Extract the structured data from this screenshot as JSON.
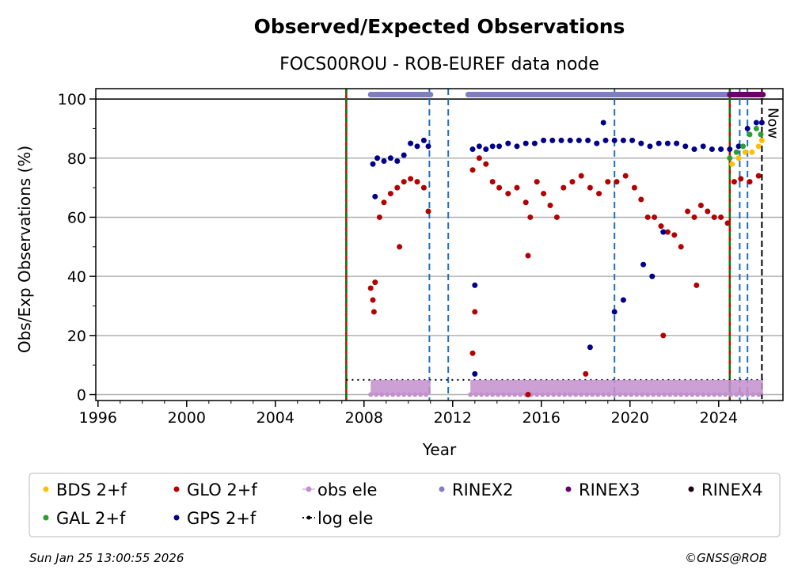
{
  "chart_data": {
    "type": "scatter",
    "title": "Observed/Expected Observations",
    "subtitle": "FOCS00ROU - ROB-EUREF data node",
    "xlabel": "Year",
    "ylabel": "Obs/Exp Observations (%)",
    "xlim": [
      1995.9,
      2026.9
    ],
    "ylim": [
      -2,
      103.5
    ],
    "x_ticks": [
      1996,
      2000,
      2004,
      2008,
      2012,
      2016,
      2020,
      2024
    ],
    "y_ticks": [
      0,
      20,
      40,
      60,
      80,
      100
    ],
    "grid": "horizontal",
    "legend_position": "bottom",
    "now_label": "Now",
    "now_year": 2025.95,
    "series": [
      {
        "name": "GLO 2+f",
        "color": "#b30000",
        "points": [
          [
            2008.3,
            36
          ],
          [
            2008.4,
            32
          ],
          [
            2008.5,
            38
          ],
          [
            2008.45,
            28
          ],
          [
            2008.7,
            60
          ],
          [
            2008.9,
            65
          ],
          [
            2009.2,
            68
          ],
          [
            2009.5,
            70
          ],
          [
            2009.8,
            72
          ],
          [
            2010.1,
            73
          ],
          [
            2010.4,
            72
          ],
          [
            2010.7,
            70
          ],
          [
            2010.9,
            62
          ],
          [
            2012.9,
            76
          ],
          [
            2013.2,
            80
          ],
          [
            2013.5,
            78
          ],
          [
            2013.8,
            72
          ],
          [
            2014.1,
            70
          ],
          [
            2014.5,
            68
          ],
          [
            2014.9,
            70
          ],
          [
            2015.3,
            65
          ],
          [
            2015.5,
            60
          ],
          [
            2015.8,
            72
          ],
          [
            2016.1,
            68
          ],
          [
            2016.4,
            64
          ],
          [
            2016.7,
            60
          ],
          [
            2017.0,
            70
          ],
          [
            2017.4,
            72
          ],
          [
            2017.8,
            74
          ],
          [
            2018.2,
            70
          ],
          [
            2018.6,
            68
          ],
          [
            2019.0,
            72
          ],
          [
            2019.4,
            72
          ],
          [
            2019.8,
            74
          ],
          [
            2020.2,
            70
          ],
          [
            2020.5,
            66
          ],
          [
            2020.8,
            60
          ],
          [
            2021.1,
            60
          ],
          [
            2021.4,
            57
          ],
          [
            2021.7,
            55
          ],
          [
            2022.0,
            54
          ],
          [
            2022.3,
            50
          ],
          [
            2022.6,
            62
          ],
          [
            2022.9,
            60
          ],
          [
            2023.2,
            64
          ],
          [
            2023.5,
            62
          ],
          [
            2023.8,
            60
          ],
          [
            2024.1,
            60
          ],
          [
            2024.4,
            58
          ],
          [
            2024.7,
            72
          ],
          [
            2025.0,
            73
          ],
          [
            2025.4,
            72
          ],
          [
            2025.8,
            74
          ],
          [
            2012.9,
            14
          ],
          [
            2013.0,
            28
          ],
          [
            2015.4,
            47
          ],
          [
            2018.0,
            7
          ],
          [
            2021.5,
            20
          ],
          [
            2023.0,
            37
          ],
          [
            2015.4,
            0
          ],
          [
            2009.6,
            50
          ]
        ]
      },
      {
        "name": "GPS 2+f",
        "color": "#00008b",
        "points": [
          [
            2008.4,
            78
          ],
          [
            2008.6,
            80
          ],
          [
            2008.9,
            79
          ],
          [
            2009.2,
            80
          ],
          [
            2009.5,
            79
          ],
          [
            2009.8,
            81
          ],
          [
            2010.1,
            85
          ],
          [
            2010.4,
            84
          ],
          [
            2010.7,
            86
          ],
          [
            2010.9,
            84
          ],
          [
            2012.9,
            83
          ],
          [
            2013.2,
            84
          ],
          [
            2013.5,
            83
          ],
          [
            2013.8,
            84
          ],
          [
            2014.1,
            84
          ],
          [
            2014.5,
            85
          ],
          [
            2014.9,
            84
          ],
          [
            2015.3,
            85
          ],
          [
            2015.7,
            85
          ],
          [
            2016.1,
            86
          ],
          [
            2016.5,
            86
          ],
          [
            2016.9,
            86
          ],
          [
            2017.3,
            86
          ],
          [
            2017.7,
            86
          ],
          [
            2018.1,
            86
          ],
          [
            2018.5,
            85
          ],
          [
            2018.9,
            86
          ],
          [
            2019.3,
            86
          ],
          [
            2019.7,
            86
          ],
          [
            2020.1,
            86
          ],
          [
            2020.5,
            85
          ],
          [
            2020.9,
            84
          ],
          [
            2021.3,
            85
          ],
          [
            2021.7,
            85
          ],
          [
            2022.1,
            85
          ],
          [
            2022.5,
            84
          ],
          [
            2022.9,
            83
          ],
          [
            2023.3,
            84
          ],
          [
            2023.7,
            83
          ],
          [
            2024.1,
            83
          ],
          [
            2024.5,
            83
          ],
          [
            2024.9,
            84
          ],
          [
            2025.3,
            90
          ],
          [
            2025.7,
            92
          ],
          [
            2025.95,
            92
          ],
          [
            2008.5,
            67
          ],
          [
            2013.0,
            37
          ],
          [
            2013.0,
            7
          ],
          [
            2019.3,
            28
          ],
          [
            2019.7,
            32
          ],
          [
            2020.6,
            44
          ],
          [
            2021.0,
            40
          ],
          [
            2018.8,
            92
          ],
          [
            2021.5,
            55
          ],
          [
            2018.2,
            16
          ]
        ]
      },
      {
        "name": "GAL 2+f",
        "color": "#2ca02c",
        "points": [
          [
            2024.5,
            80
          ],
          [
            2024.8,
            82
          ],
          [
            2025.1,
            84
          ],
          [
            2025.4,
            88
          ],
          [
            2025.7,
            90
          ],
          [
            2025.9,
            88
          ]
        ]
      },
      {
        "name": "BDS 2+f",
        "color": "#ffbf00",
        "points": [
          [
            2024.6,
            78
          ],
          [
            2024.9,
            80
          ],
          [
            2025.2,
            82
          ],
          [
            2025.5,
            82
          ],
          [
            2025.8,
            84
          ],
          [
            2025.95,
            86
          ]
        ]
      }
    ],
    "obs_ele": {
      "name": "obs ele",
      "color": "#c38fce",
      "ranges": [
        [
          2008.3,
          2011.0
        ],
        [
          2012.8,
          2026.0
        ]
      ],
      "value_range": [
        0,
        5
      ]
    },
    "log_ele": {
      "name": "log ele",
      "color": "#000000",
      "value": 5,
      "range": [
        2007.2,
        2026.0
      ]
    },
    "rinex_bars": [
      {
        "name": "RINEX2",
        "color": "#7f7fbf",
        "ranges": [
          [
            2008.3,
            2011.0
          ],
          [
            2012.7,
            2024.5
          ]
        ]
      },
      {
        "name": "RINEX3",
        "color": "#6a006a",
        "ranges": [
          [
            2024.5,
            2026.0
          ]
        ]
      },
      {
        "name": "RINEX4",
        "color": "#1a0010",
        "ranges": []
      }
    ],
    "event_lines": [
      {
        "type": "receiver/antenna",
        "colors": [
          "#cc0000",
          "#008000"
        ],
        "years": [
          2007.2,
          2024.5
        ]
      },
      {
        "type": "change",
        "color": "#1f6fbf",
        "years": [
          2010.95,
          2011.8,
          2019.3,
          2024.95,
          2025.3
        ]
      }
    ]
  },
  "legend": [
    {
      "label": "BDS 2+f",
      "color": "#ffbf00",
      "kind": "dot"
    },
    {
      "label": "GLO 2+f",
      "color": "#b30000",
      "kind": "dot"
    },
    {
      "label": "obs ele",
      "color": "#c38fce",
      "kind": "line-dot"
    },
    {
      "label": "RINEX2",
      "color": "#7f7fbf",
      "kind": "dot"
    },
    {
      "label": "RINEX3",
      "color": "#6a006a",
      "kind": "dot"
    },
    {
      "label": "RINEX4",
      "color": "#1a0010",
      "kind": "dot"
    },
    {
      "label": "GAL 2+f",
      "color": "#2ca02c",
      "kind": "dot"
    },
    {
      "label": "GPS 2+f",
      "color": "#00008b",
      "kind": "dot"
    },
    {
      "label": "log ele",
      "color": "#000000",
      "kind": "dotted"
    }
  ],
  "footer": {
    "timestamp": "Sun Jan 25 13:00:55 2026",
    "credit": "©GNSS@ROB"
  }
}
